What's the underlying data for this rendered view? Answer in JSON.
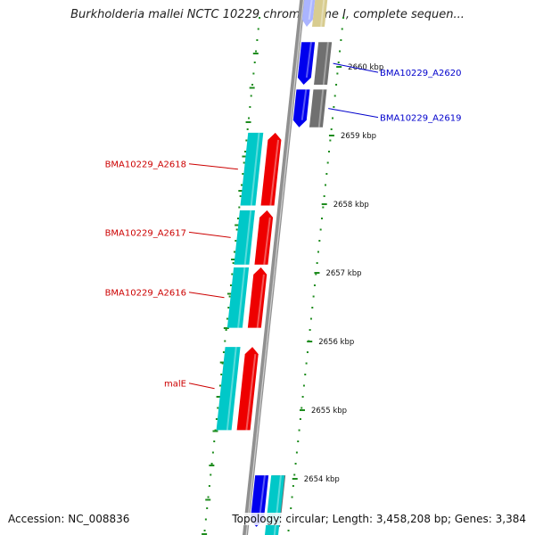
{
  "title": "Burkholderia mallei NCTC 10229 chromosome I, complete sequen...",
  "footer": {
    "accession": "Accession: NC_008836",
    "summary": "Topology: circular; Length: 3,458,208 bp; Genes: 3,384"
  },
  "colors": {
    "backbone": "#909090",
    "forward_cds": "#0000ee",
    "reverse_cds": "#ee0000",
    "orf": "#00c8c8",
    "other": "#707070",
    "rna": "#d8cc90",
    "tick": "#1e8c1e",
    "label_forward": "#0000cc",
    "label_reverse": "#cc0000"
  },
  "scale": {
    "ticks": [
      {
        "position_kbp": 2660,
        "label": "2660 kbp"
      },
      {
        "position_kbp": 2659,
        "label": "2659 kbp"
      },
      {
        "position_kbp": 2658,
        "label": "2658 kbp"
      },
      {
        "position_kbp": 2657,
        "label": "2657 kbp"
      },
      {
        "position_kbp": 2656,
        "label": "2656 kbp"
      },
      {
        "position_kbp": 2655,
        "label": "2655 kbp"
      },
      {
        "position_kbp": 2654,
        "label": "2654 kbp"
      }
    ]
  },
  "genes": [
    {
      "label": "BMA10229_A2620",
      "strand": "+",
      "start_kbp": 2659.74,
      "end_kbp": 2660.36
    },
    {
      "label": "BMA10229_A2619",
      "strand": "+",
      "start_kbp": 2659.12,
      "end_kbp": 2659.67
    },
    {
      "label": "BMA10229_A2618",
      "strand": "-",
      "start_kbp": 2657.98,
      "end_kbp": 2659.04
    },
    {
      "label": "BMA10229_A2617",
      "strand": "-",
      "start_kbp": 2657.12,
      "end_kbp": 2657.91
    },
    {
      "label": "BMA10229_A2616",
      "strand": "-",
      "start_kbp": 2656.2,
      "end_kbp": 2657.08
    },
    {
      "label": "malE",
      "strand": "-",
      "start_kbp": 2654.71,
      "end_kbp": 2655.92
    },
    {
      "label": "",
      "strand": "+",
      "start_kbp": 2653.3,
      "end_kbp": 2654.05
    }
  ]
}
